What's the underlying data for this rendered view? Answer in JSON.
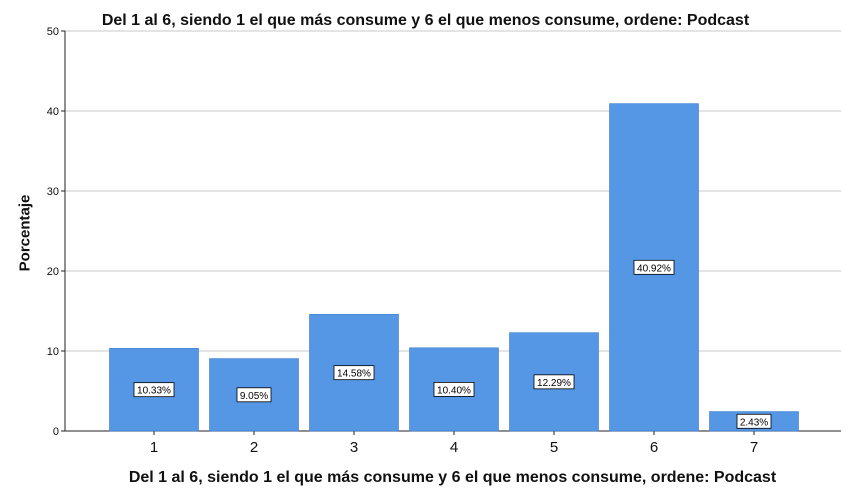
{
  "chart_data": {
    "type": "bar",
    "title": "Del 1 al 6, siendo 1 el que más consume y 6 el que menos consume, ordene: Podcast",
    "xlabel": "Del 1 al 6, siendo 1 el que más consume y 6 el que menos consume, ordene: Podcast",
    "ylabel": "Porcentaje",
    "categories": [
      "1",
      "2",
      "3",
      "4",
      "5",
      "6",
      "7"
    ],
    "values": [
      10.33,
      9.05,
      14.58,
      10.4,
      12.29,
      40.92,
      2.43
    ],
    "data_labels": [
      "10.33%",
      "9.05%",
      "14.58%",
      "10.40%",
      "12.29%",
      "40.92%",
      "2.43%"
    ],
    "ylim": [
      0,
      50
    ],
    "yticks": [
      0,
      10,
      20,
      30,
      40,
      50
    ],
    "grid": true,
    "bar_color": "#5597e5",
    "legend": "none"
  }
}
